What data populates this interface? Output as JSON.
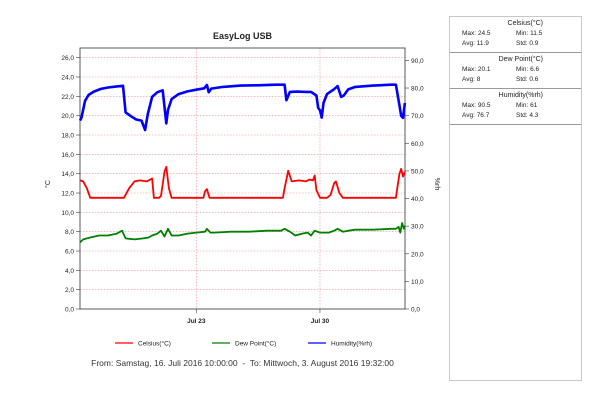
{
  "chart_data": {
    "type": "line",
    "title": "EasyLog USB",
    "ylabel_left": "°C",
    "ylabel_right": "%rh",
    "ylim_left": [
      0,
      27
    ],
    "ylim_right": [
      0,
      94.5
    ],
    "yticks_left": [
      "0,0",
      "2,0",
      "4,0",
      "6,0",
      "8,0",
      "10,0",
      "12,0",
      "14,0",
      "16,0",
      "18,0",
      "20,0",
      "22,0",
      "24,0",
      "26,0"
    ],
    "yticks_right": [
      "0,0",
      "10,0",
      "20,0",
      "30,0",
      "40,0",
      "50,0",
      "60,0",
      "70,0",
      "80,0",
      "90,0"
    ],
    "x_range_days": [
      16.4167,
      34.8139
    ],
    "x_ticks": [
      {
        "label": "Jul 23",
        "day": 23
      },
      {
        "label": "Jul 30",
        "day": 30
      }
    ],
    "grid": true,
    "legend_position": "bottom",
    "series": [
      {
        "name": "Celsius(°C)",
        "axis": "left",
        "color": "#ff0000",
        "points": [
          [
            16.42,
            13.3
          ],
          [
            16.6,
            13.2
          ],
          [
            16.8,
            12.5
          ],
          [
            17.0,
            11.5
          ],
          [
            17.5,
            11.5
          ],
          [
            18.0,
            11.5
          ],
          [
            18.5,
            11.5
          ],
          [
            18.9,
            11.5
          ],
          [
            19.2,
            12.5
          ],
          [
            19.5,
            13.2
          ],
          [
            19.8,
            13.3
          ],
          [
            20.2,
            13.2
          ],
          [
            20.5,
            13.5
          ],
          [
            20.6,
            11.5
          ],
          [
            20.9,
            11.5
          ],
          [
            21.0,
            11.7
          ],
          [
            21.2,
            14.2
          ],
          [
            21.3,
            14.7
          ],
          [
            21.45,
            12.5
          ],
          [
            21.6,
            11.5
          ],
          [
            22.5,
            11.5
          ],
          [
            23.0,
            11.5
          ],
          [
            23.4,
            11.5
          ],
          [
            23.5,
            12.2
          ],
          [
            23.6,
            12.4
          ],
          [
            23.75,
            11.5
          ],
          [
            24.5,
            11.5
          ],
          [
            25.5,
            11.5
          ],
          [
            26.5,
            11.5
          ],
          [
            27.5,
            11.5
          ],
          [
            27.9,
            11.5
          ],
          [
            28.0,
            12.5
          ],
          [
            28.2,
            14.3
          ],
          [
            28.4,
            13.2
          ],
          [
            28.8,
            13.3
          ],
          [
            29.2,
            13.2
          ],
          [
            29.4,
            13.4
          ],
          [
            29.6,
            13.3
          ],
          [
            29.7,
            13.8
          ],
          [
            29.8,
            12.3
          ],
          [
            30.0,
            11.5
          ],
          [
            30.4,
            11.5
          ],
          [
            30.6,
            11.8
          ],
          [
            30.8,
            13.0
          ],
          [
            30.9,
            13.2
          ],
          [
            31.1,
            12.0
          ],
          [
            31.3,
            11.5
          ],
          [
            32.0,
            11.5
          ],
          [
            33.0,
            11.5
          ],
          [
            34.0,
            11.5
          ],
          [
            34.3,
            11.5
          ],
          [
            34.4,
            12.8
          ],
          [
            34.5,
            14.0
          ],
          [
            34.6,
            14.5
          ],
          [
            34.7,
            13.7
          ],
          [
            34.81,
            14.2
          ]
        ]
      },
      {
        "name": "Dew Point(°C)",
        "axis": "left",
        "color": "#008000",
        "points": [
          [
            16.42,
            6.9
          ],
          [
            16.6,
            7.2
          ],
          [
            17.0,
            7.4
          ],
          [
            17.5,
            7.6
          ],
          [
            18.0,
            7.6
          ],
          [
            18.5,
            7.8
          ],
          [
            18.8,
            8.1
          ],
          [
            19.0,
            7.3
          ],
          [
            19.5,
            7.2
          ],
          [
            20.0,
            7.3
          ],
          [
            20.3,
            7.4
          ],
          [
            20.5,
            7.6
          ],
          [
            20.8,
            7.8
          ],
          [
            21.0,
            8.1
          ],
          [
            21.2,
            7.5
          ],
          [
            21.4,
            8.3
          ],
          [
            21.6,
            7.6
          ],
          [
            22.0,
            7.6
          ],
          [
            22.5,
            7.8
          ],
          [
            23.0,
            7.9
          ],
          [
            23.5,
            8.0
          ],
          [
            23.6,
            8.3
          ],
          [
            23.8,
            7.9
          ],
          [
            24.0,
            7.9
          ],
          [
            25.0,
            8.0
          ],
          [
            26.0,
            8.0
          ],
          [
            27.0,
            8.1
          ],
          [
            27.8,
            8.1
          ],
          [
            28.0,
            8.3
          ],
          [
            28.3,
            8.0
          ],
          [
            28.6,
            7.6
          ],
          [
            29.0,
            7.8
          ],
          [
            29.3,
            7.9
          ],
          [
            29.5,
            7.6
          ],
          [
            29.7,
            8.1
          ],
          [
            30.0,
            7.9
          ],
          [
            30.5,
            7.9
          ],
          [
            30.8,
            8.1
          ],
          [
            31.0,
            8.3
          ],
          [
            31.3,
            8.0
          ],
          [
            31.6,
            8.1
          ],
          [
            32.0,
            8.2
          ],
          [
            33.0,
            8.2
          ],
          [
            34.0,
            8.3
          ],
          [
            34.3,
            8.3
          ],
          [
            34.45,
            8.5
          ],
          [
            34.55,
            7.9
          ],
          [
            34.65,
            8.9
          ],
          [
            34.75,
            8.3
          ],
          [
            34.81,
            8.6
          ]
        ]
      },
      {
        "name": "Humidity(%rh)",
        "axis": "right",
        "color": "#0000ff",
        "points": [
          [
            16.42,
            68.2
          ],
          [
            16.5,
            69.3
          ],
          [
            16.7,
            75.3
          ],
          [
            16.9,
            77.5
          ],
          [
            17.2,
            78.7
          ],
          [
            17.6,
            79.7
          ],
          [
            18.0,
            80.2
          ],
          [
            18.5,
            80.6
          ],
          [
            18.85,
            80.8
          ],
          [
            19.0,
            71.2
          ],
          [
            19.3,
            69.8
          ],
          [
            19.6,
            68.6
          ],
          [
            19.9,
            68.2
          ],
          [
            20.1,
            64.8
          ],
          [
            20.25,
            70.4
          ],
          [
            20.5,
            76.8
          ],
          [
            20.8,
            78.5
          ],
          [
            21.1,
            79.2
          ],
          [
            21.3,
            67.2
          ],
          [
            21.4,
            72.1
          ],
          [
            21.6,
            76.0
          ],
          [
            22.0,
            77.8
          ],
          [
            22.5,
            78.8
          ],
          [
            23.0,
            79.4
          ],
          [
            23.45,
            79.9
          ],
          [
            23.6,
            81.1
          ],
          [
            23.7,
            78.5
          ],
          [
            23.85,
            79.8
          ],
          [
            24.5,
            80.4
          ],
          [
            25.5,
            80.9
          ],
          [
            26.5,
            81.0
          ],
          [
            27.5,
            81.2
          ],
          [
            28.0,
            81.2
          ],
          [
            28.1,
            75.6
          ],
          [
            28.3,
            78.6
          ],
          [
            28.7,
            78.7
          ],
          [
            29.2,
            78.6
          ],
          [
            29.5,
            78.6
          ],
          [
            29.8,
            77.3
          ],
          [
            29.9,
            72.8
          ],
          [
            30.0,
            71.9
          ],
          [
            30.1,
            69.3
          ],
          [
            30.2,
            74.6
          ],
          [
            30.4,
            77.8
          ],
          [
            30.8,
            79.6
          ],
          [
            31.0,
            80.7
          ],
          [
            31.2,
            76.8
          ],
          [
            31.35,
            77.3
          ],
          [
            31.6,
            79.5
          ],
          [
            32.0,
            80.4
          ],
          [
            33.0,
            80.9
          ],
          [
            34.0,
            81.2
          ],
          [
            34.3,
            81.2
          ],
          [
            34.5,
            73.6
          ],
          [
            34.6,
            69.9
          ],
          [
            34.7,
            69.2
          ],
          [
            34.81,
            74.6
          ]
        ]
      }
    ]
  },
  "stats": [
    {
      "title": "Celsius(°C)",
      "rows": [
        [
          "Max: 24.5",
          "Min: 11.5"
        ],
        [
          "Avg: 11.9",
          "Std: 0.9"
        ]
      ]
    },
    {
      "title": "Dew Point(°C)",
      "rows": [
        [
          "Max: 20.1",
          "Min: 6.6"
        ],
        [
          "Avg: 8",
          "Std: 0.6"
        ]
      ]
    },
    {
      "title": "Humidity(%rh)",
      "rows": [
        [
          "Max: 90.5",
          "Min: 61"
        ],
        [
          "Avg: 76.7",
          "Std: 4.3"
        ]
      ]
    }
  ],
  "range_text": "From: Samstag, 16. Juli 2016 10:00:00  -  To: Mittwoch, 3. August 2016 19:32:00"
}
